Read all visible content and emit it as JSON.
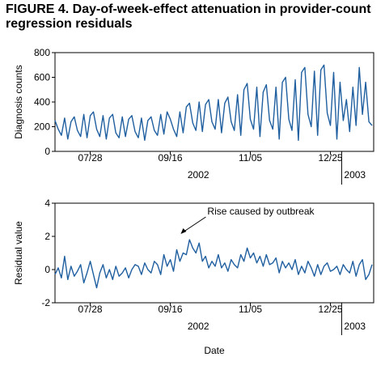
{
  "figure": {
    "title": "FIGURE 4. Day-of-week-effect attenuation in provider-count regression residuals",
    "xlabel": "Date"
  },
  "chart_data": [
    {
      "type": "line",
      "name": "diagnosis-counts",
      "ylabel": "Diagnosis counts",
      "ylim": [
        0,
        800
      ],
      "yticks": [
        0,
        200,
        400,
        600,
        800
      ],
      "xlim": [
        "2002-07-06",
        "2003-01-21"
      ],
      "xtick_labels": [
        "07/28",
        "09/16",
        "11/05",
        "12/25"
      ],
      "xtick_dates": [
        "2002-07-28",
        "2002-09-16",
        "2002-11-05",
        "2002-12-25"
      ],
      "year_labels": [
        "2002",
        "2003"
      ],
      "year_break": "2003-01-01",
      "series_color": "#1f5fa0",
      "series": [
        {
          "x": [
            "2002-07-06",
            "2002-07-08",
            "2002-07-10",
            "2002-07-12",
            "2002-07-14",
            "2002-07-16",
            "2002-07-18",
            "2002-07-20",
            "2002-07-22",
            "2002-07-24",
            "2002-07-26",
            "2002-07-28",
            "2002-07-30",
            "2002-08-01",
            "2002-08-03",
            "2002-08-05",
            "2002-08-07",
            "2002-08-09",
            "2002-08-11",
            "2002-08-13",
            "2002-08-15",
            "2002-08-17",
            "2002-08-19",
            "2002-08-21",
            "2002-08-23",
            "2002-08-25",
            "2002-08-27",
            "2002-08-29",
            "2002-08-31",
            "2002-09-02",
            "2002-09-04",
            "2002-09-06",
            "2002-09-08",
            "2002-09-10",
            "2002-09-12",
            "2002-09-14",
            "2002-09-16",
            "2002-09-18",
            "2002-09-20",
            "2002-09-22",
            "2002-09-24",
            "2002-09-26",
            "2002-09-28",
            "2002-09-30",
            "2002-10-02",
            "2002-10-04",
            "2002-10-06",
            "2002-10-08",
            "2002-10-10",
            "2002-10-12",
            "2002-10-14",
            "2002-10-16",
            "2002-10-18",
            "2002-10-20",
            "2002-10-22",
            "2002-10-24",
            "2002-10-26",
            "2002-10-28",
            "2002-10-30",
            "2002-11-01",
            "2002-11-03",
            "2002-11-05",
            "2002-11-07",
            "2002-11-09",
            "2002-11-11",
            "2002-11-13",
            "2002-11-15",
            "2002-11-17",
            "2002-11-19",
            "2002-11-21",
            "2002-11-23",
            "2002-11-25",
            "2002-11-27",
            "2002-11-29",
            "2002-12-01",
            "2002-12-03",
            "2002-12-05",
            "2002-12-07",
            "2002-12-09",
            "2002-12-11",
            "2002-12-13",
            "2002-12-15",
            "2002-12-17",
            "2002-12-19",
            "2002-12-21",
            "2002-12-23",
            "2002-12-25",
            "2002-12-27",
            "2002-12-29",
            "2002-12-31",
            "2003-01-02",
            "2003-01-04",
            "2003-01-06",
            "2003-01-08",
            "2003-01-10",
            "2003-01-12",
            "2003-01-14",
            "2003-01-16",
            "2003-01-18",
            "2003-01-20"
          ],
          "y": [
            250,
            180,
            130,
            270,
            100,
            240,
            280,
            170,
            120,
            300,
            110,
            290,
            320,
            180,
            120,
            290,
            100,
            270,
            300,
            150,
            110,
            280,
            120,
            260,
            290,
            160,
            110,
            270,
            90,
            250,
            280,
            170,
            130,
            300,
            140,
            320,
            260,
            180,
            120,
            320,
            150,
            360,
            390,
            230,
            170,
            400,
            160,
            380,
            420,
            240,
            180,
            420,
            150,
            390,
            440,
            240,
            170,
            460,
            130,
            500,
            550,
            260,
            180,
            520,
            120,
            480,
            540,
            250,
            180,
            520,
            100,
            560,
            600,
            260,
            170,
            580,
            90,
            640,
            680,
            300,
            200,
            650,
            130,
            660,
            700,
            310,
            210,
            640,
            100,
            560,
            250,
            420,
            160,
            520,
            210,
            680,
            300,
            560,
            240,
            210
          ]
        }
      ]
    },
    {
      "type": "line",
      "name": "residual-value",
      "ylabel": "Residual value",
      "ylim": [
        -2,
        4
      ],
      "yticks": [
        -2,
        0,
        2,
        4
      ],
      "xlim": [
        "2002-07-06",
        "2003-01-21"
      ],
      "xtick_labels": [
        "07/28",
        "09/16",
        "11/05",
        "12/25"
      ],
      "xtick_dates": [
        "2002-07-28",
        "2002-09-16",
        "2002-11-05",
        "2002-12-25"
      ],
      "year_labels": [
        "2002",
        "2003"
      ],
      "year_break": "2003-01-01",
      "series_color": "#1f5fa0",
      "annotation": {
        "text": "Rise caused by outbreak",
        "x": "2002-09-22",
        "y": 2.0
      },
      "series": [
        {
          "x": [
            "2002-07-06",
            "2002-07-08",
            "2002-07-10",
            "2002-07-12",
            "2002-07-14",
            "2002-07-16",
            "2002-07-18",
            "2002-07-20",
            "2002-07-22",
            "2002-07-24",
            "2002-07-26",
            "2002-07-28",
            "2002-07-30",
            "2002-08-01",
            "2002-08-03",
            "2002-08-05",
            "2002-08-07",
            "2002-08-09",
            "2002-08-11",
            "2002-08-13",
            "2002-08-15",
            "2002-08-17",
            "2002-08-19",
            "2002-08-21",
            "2002-08-23",
            "2002-08-25",
            "2002-08-27",
            "2002-08-29",
            "2002-08-31",
            "2002-09-02",
            "2002-09-04",
            "2002-09-06",
            "2002-09-08",
            "2002-09-10",
            "2002-09-12",
            "2002-09-14",
            "2002-09-16",
            "2002-09-18",
            "2002-09-20",
            "2002-09-22",
            "2002-09-24",
            "2002-09-26",
            "2002-09-28",
            "2002-09-30",
            "2002-10-02",
            "2002-10-04",
            "2002-10-06",
            "2002-10-08",
            "2002-10-10",
            "2002-10-12",
            "2002-10-14",
            "2002-10-16",
            "2002-10-18",
            "2002-10-20",
            "2002-10-22",
            "2002-10-24",
            "2002-10-26",
            "2002-10-28",
            "2002-10-30",
            "2002-11-01",
            "2002-11-03",
            "2002-11-05",
            "2002-11-07",
            "2002-11-09",
            "2002-11-11",
            "2002-11-13",
            "2002-11-15",
            "2002-11-17",
            "2002-11-19",
            "2002-11-21",
            "2002-11-23",
            "2002-11-25",
            "2002-11-27",
            "2002-11-29",
            "2002-12-01",
            "2002-12-03",
            "2002-12-05",
            "2002-12-07",
            "2002-12-09",
            "2002-12-11",
            "2002-12-13",
            "2002-12-15",
            "2002-12-17",
            "2002-12-19",
            "2002-12-21",
            "2002-12-23",
            "2002-12-25",
            "2002-12-27",
            "2002-12-29",
            "2002-12-31",
            "2003-01-02",
            "2003-01-04",
            "2003-01-06",
            "2003-01-08",
            "2003-01-10",
            "2003-01-12",
            "2003-01-14",
            "2003-01-16",
            "2003-01-18",
            "2003-01-20"
          ],
          "y": [
            -0.3,
            0.1,
            -0.5,
            0.8,
            -0.6,
            0.2,
            -0.4,
            -0.1,
            0.3,
            -0.8,
            -0.2,
            0.5,
            -0.3,
            -1.1,
            -0.2,
            0.3,
            -0.5,
            0.0,
            -0.6,
            0.2,
            -0.4,
            -0.2,
            0.1,
            -0.5,
            0.0,
            0.3,
            0.2,
            -0.3,
            0.4,
            0.0,
            -0.2,
            0.5,
            0.3,
            -0.3,
            0.9,
            0.2,
            0.6,
            -0.1,
            1.2,
            0.5,
            1.0,
            0.9,
            1.8,
            1.3,
            1.0,
            1.6,
            0.5,
            0.8,
            0.1,
            0.5,
            0.2,
            0.9,
            0.1,
            0.4,
            -0.1,
            0.6,
            0.3,
            0.1,
            0.9,
            0.5,
            1.3,
            0.7,
            1.0,
            0.4,
            0.8,
            0.2,
            0.9,
            0.3,
            0.4,
            0.7,
            -0.2,
            0.5,
            0.1,
            0.4,
            0.0,
            0.6,
            -0.3,
            0.2,
            -0.2,
            0.5,
            0.1,
            -0.4,
            0.3,
            -0.3,
            0.2,
            0.4,
            -0.1,
            0.0,
            0.2,
            -0.3,
            0.3,
            0.0,
            -0.2,
            0.5,
            -0.4,
            0.3,
            0.6,
            -0.6,
            -0.3,
            0.3
          ]
        }
      ]
    }
  ]
}
